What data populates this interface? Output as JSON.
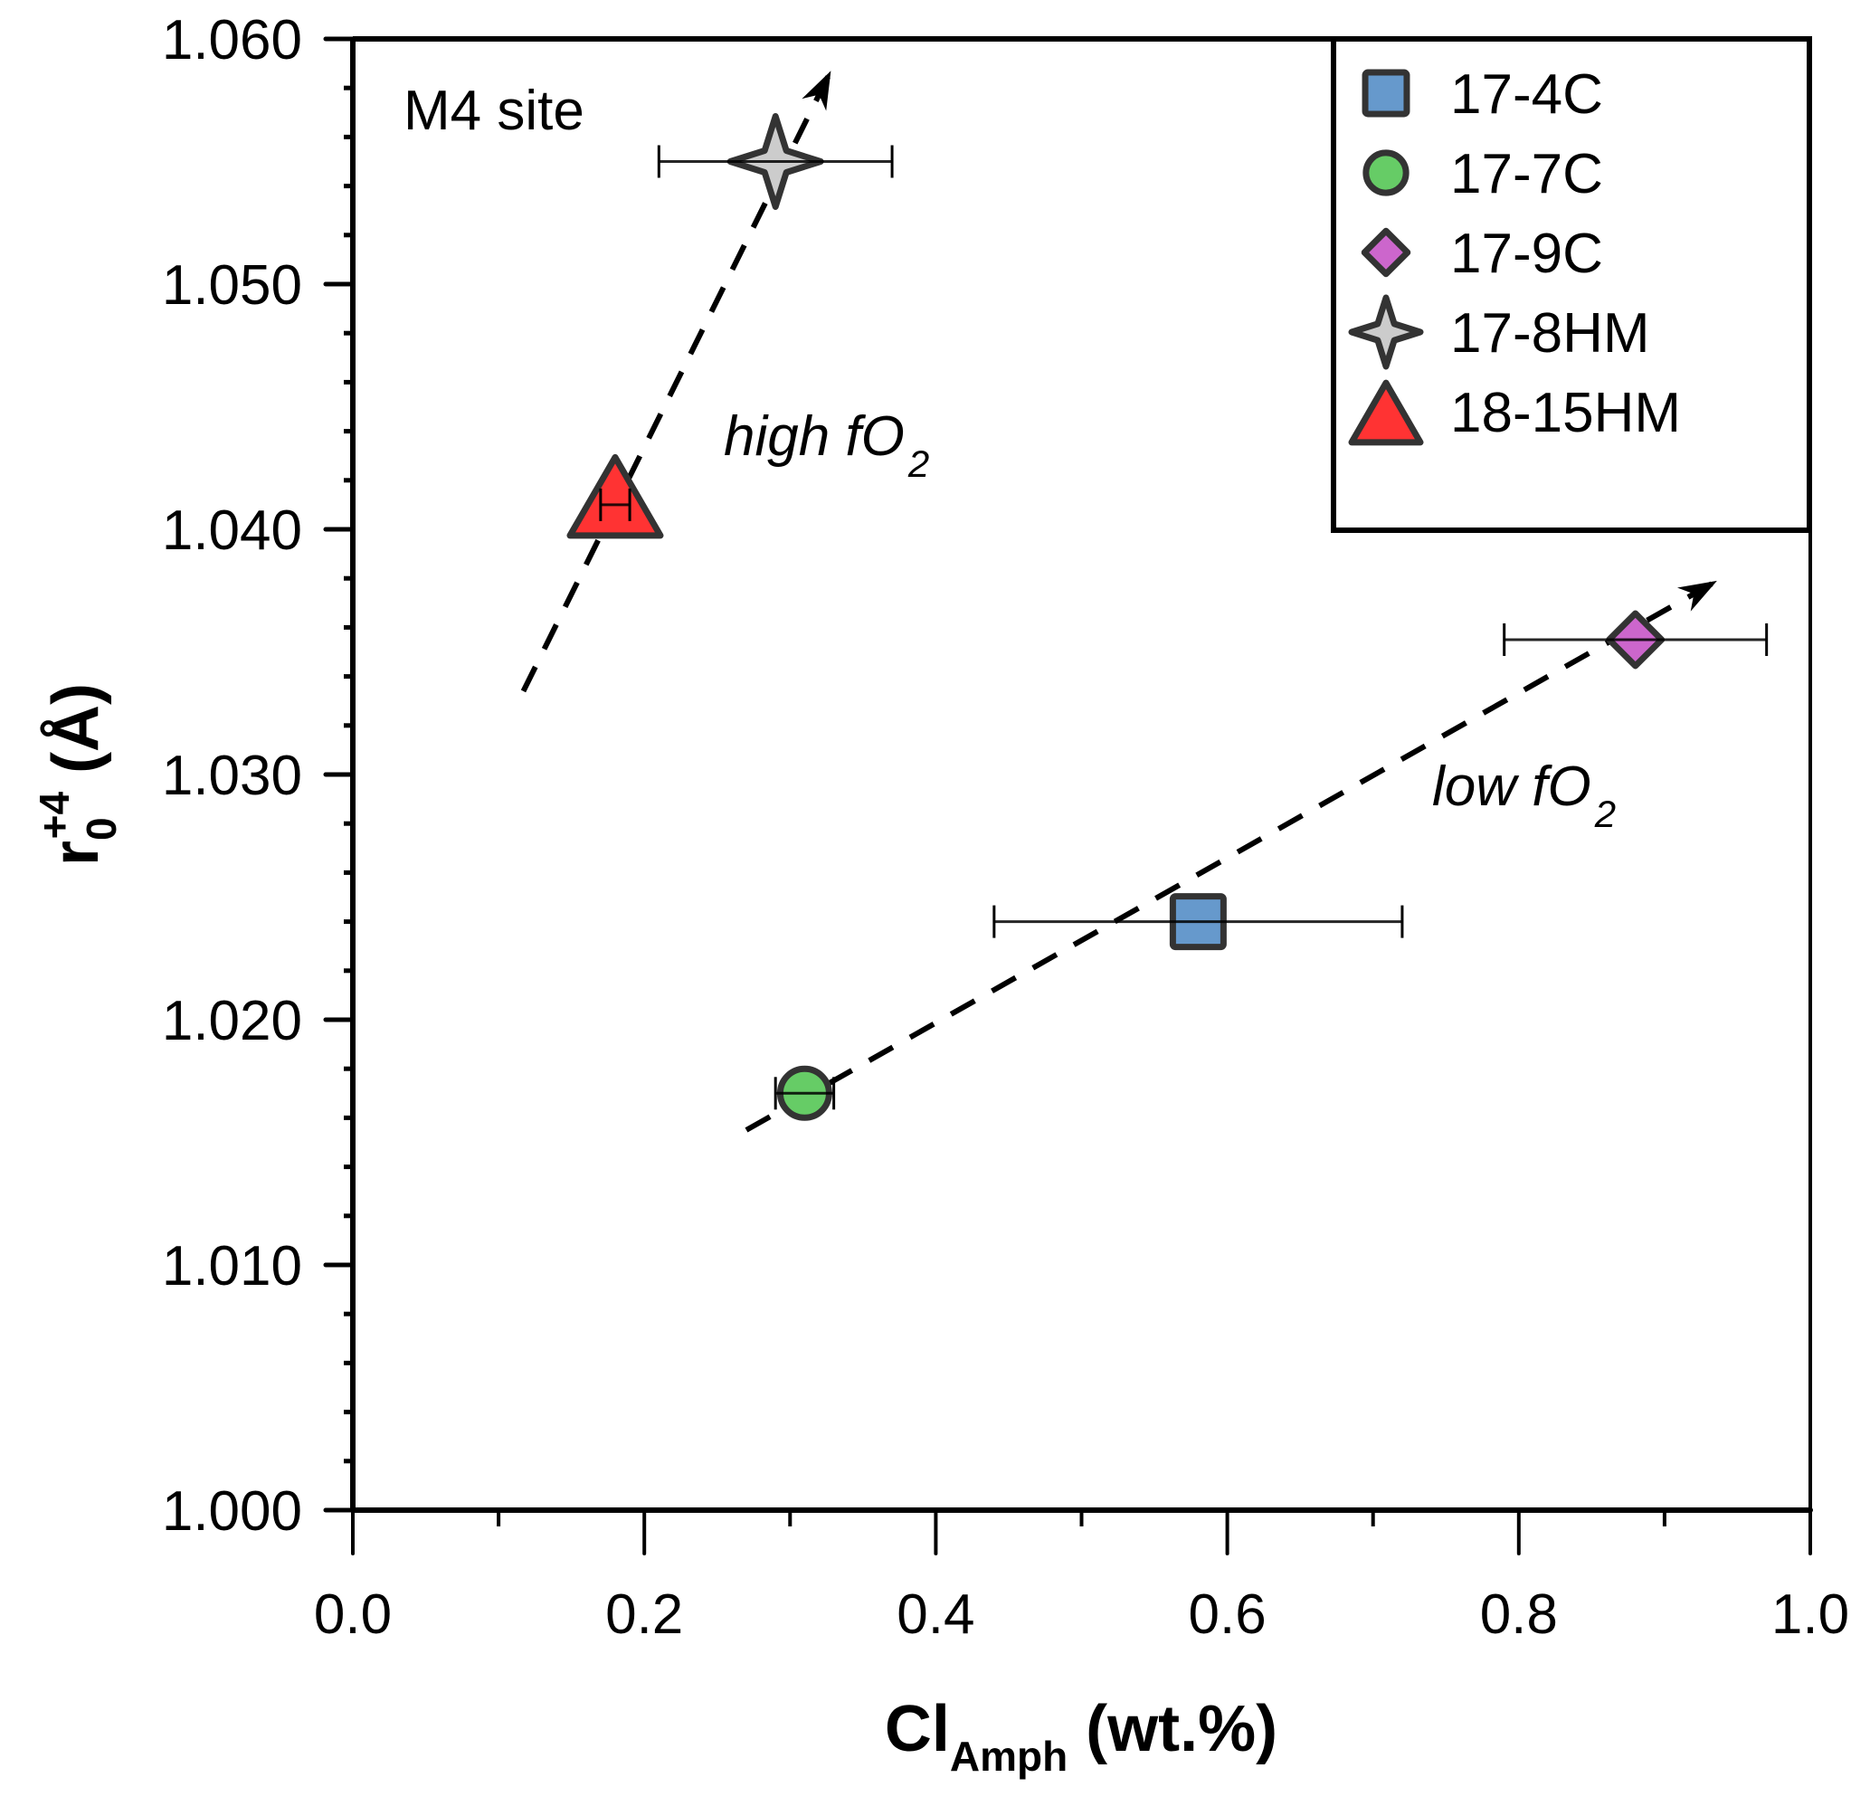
{
  "chart_data": {
    "type": "scatter",
    "title": "",
    "annotation": "M4 site",
    "xlabel": {
      "main": "Cl",
      "sub": "Amph",
      "unit": " (wt.%)"
    },
    "ylabel": {
      "main": "r",
      "sub": "0",
      "sup": "+4",
      "unit": " (Å)"
    },
    "xlim": [
      0.0,
      1.0
    ],
    "ylim": [
      1.0,
      1.06
    ],
    "x_ticks": [
      "0.0",
      "0.2",
      "0.4",
      "0.6",
      "0.8",
      "1.0"
    ],
    "x_tick_values": [
      0.0,
      0.2,
      0.4,
      0.6,
      0.8,
      1.0
    ],
    "x_minor_step": 0.1,
    "y_ticks": [
      "1.000",
      "1.010",
      "1.020",
      "1.030",
      "1.040",
      "1.050",
      "1.060"
    ],
    "y_tick_values": [
      1.0,
      1.01,
      1.02,
      1.03,
      1.04,
      1.05,
      1.06
    ],
    "y_minor_step": 0.002,
    "grid": false,
    "legend_position": "top-right",
    "series": [
      {
        "name": "17-4C",
        "marker": "square",
        "color": "#6699cc",
        "x": 0.58,
        "y": 1.024,
        "xerr": [
          0.44,
          0.72
        ]
      },
      {
        "name": "17-7C",
        "marker": "circle",
        "color": "#66cc66",
        "x": 0.31,
        "y": 1.017,
        "xerr": [
          0.29,
          0.33
        ]
      },
      {
        "name": "17-9C",
        "marker": "diamond",
        "color": "#cc66cc",
        "x": 0.88,
        "y": 1.0355,
        "xerr": [
          0.79,
          0.97
        ]
      },
      {
        "name": "17-8HM",
        "marker": "star4",
        "color": "#cccccc",
        "x": 0.29,
        "y": 1.055,
        "xerr": [
          0.21,
          0.37
        ]
      },
      {
        "name": "18-15HM",
        "marker": "triangle",
        "color": "#ff3333",
        "x": 0.18,
        "y": 1.041,
        "xerr": [
          0.17,
          0.19
        ]
      }
    ],
    "trend_arrows": [
      {
        "label": "high fO",
        "label_sub": "2",
        "from": [
          0.117,
          1.0334
        ],
        "to": [
          0.328,
          1.0587
        ]
      },
      {
        "label": "low fO",
        "label_sub": "2",
        "from": [
          0.27,
          1.0155
        ],
        "to": [
          0.936,
          1.0379
        ]
      }
    ],
    "marker_edge_color": "#333333"
  }
}
